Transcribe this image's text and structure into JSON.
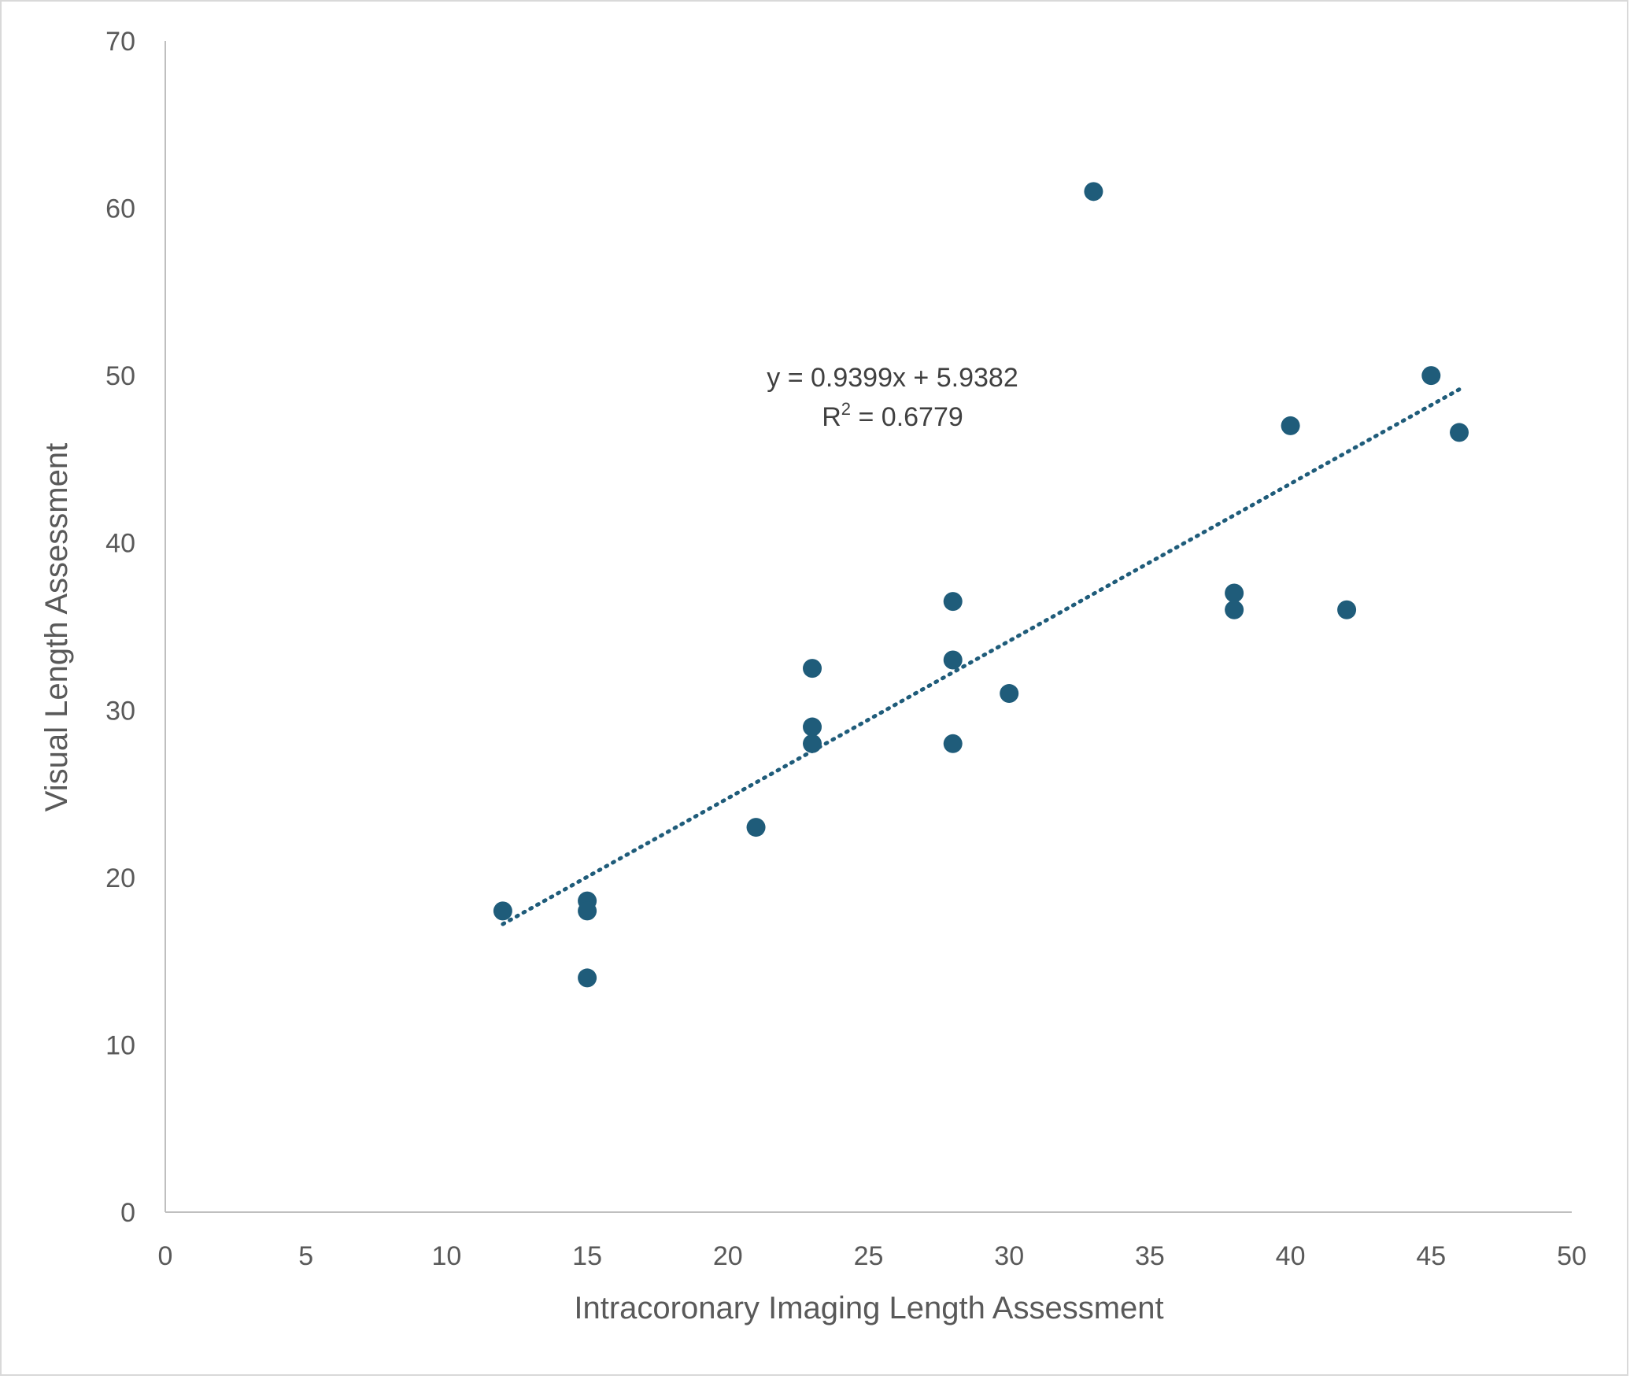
{
  "chart_data": {
    "type": "scatter",
    "title": "",
    "xlabel": "Intracoronary Imaging Length Assessment",
    "ylabel": "Visual Length Assessment",
    "xlim": [
      0,
      50
    ],
    "ylim": [
      0,
      70
    ],
    "x_ticks": [
      "0",
      "5",
      "10",
      "15",
      "20",
      "25",
      "30",
      "35",
      "40",
      "45",
      "50"
    ],
    "y_ticks": [
      "0",
      "10",
      "20",
      "30",
      "40",
      "50",
      "60",
      "70"
    ],
    "grid": false,
    "legend": "none",
    "marker_color": "#1f5c7a",
    "points": [
      {
        "x": 12,
        "y": 18
      },
      {
        "x": 15,
        "y": 18.6
      },
      {
        "x": 15,
        "y": 18
      },
      {
        "x": 15,
        "y": 14
      },
      {
        "x": 21,
        "y": 23
      },
      {
        "x": 23,
        "y": 32.5
      },
      {
        "x": 23,
        "y": 29
      },
      {
        "x": 23,
        "y": 28
      },
      {
        "x": 28,
        "y": 36.5
      },
      {
        "x": 28,
        "y": 33
      },
      {
        "x": 28,
        "y": 28
      },
      {
        "x": 30,
        "y": 31
      },
      {
        "x": 33,
        "y": 61
      },
      {
        "x": 38,
        "y": 37
      },
      {
        "x": 38,
        "y": 36
      },
      {
        "x": 40,
        "y": 47
      },
      {
        "x": 42,
        "y": 36
      },
      {
        "x": 45,
        "y": 50
      },
      {
        "x": 46,
        "y": 46.6
      }
    ],
    "trendline": {
      "type": "linear",
      "style": "dotted",
      "slope": 0.9399,
      "intercept": 5.9382,
      "x_range": [
        12,
        46
      ],
      "equation_label": "y = 0.9399x + 5.9382",
      "r2_prefix": "R",
      "r2_sup": "2",
      "r2_value": " = 0.6779"
    }
  }
}
